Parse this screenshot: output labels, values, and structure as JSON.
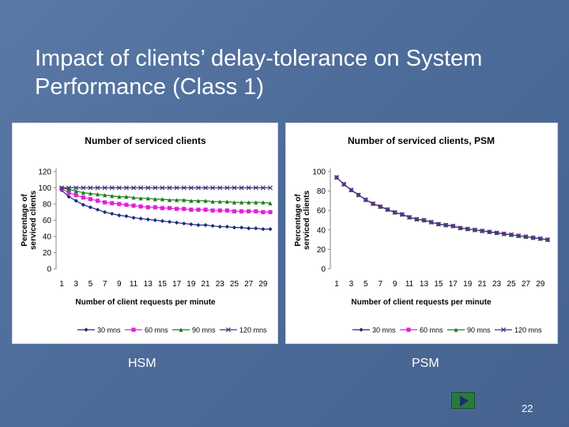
{
  "slide": {
    "title": "Impact of clients’ delay-tolerance on System Performance (Class 1)",
    "page_number": "22",
    "captions": [
      "HSM",
      "PSM"
    ]
  },
  "chart_data": [
    {
      "type": "line",
      "title": "Number of serviced clients",
      "xlabel": "Number of client requests per minute",
      "ylabel": "Percentage of serviced clients",
      "x": [
        1,
        2,
        3,
        4,
        5,
        6,
        7,
        8,
        9,
        10,
        11,
        12,
        13,
        14,
        15,
        16,
        17,
        18,
        19,
        20,
        21,
        22,
        23,
        24,
        25,
        26,
        27,
        28,
        29,
        30
      ],
      "xticks": [
        "1",
        "3",
        "5",
        "7",
        "9",
        "11",
        "13",
        "15",
        "17",
        "19",
        "21",
        "23",
        "25",
        "27",
        "29"
      ],
      "yticks": [
        "0",
        "20",
        "40",
        "60",
        "80",
        "100",
        "120"
      ],
      "ylim": [
        0,
        120
      ],
      "grid": false,
      "legend_position": "bottom",
      "series": [
        {
          "name": "30 mns",
          "color": "#1f2a7a",
          "marker": "diamond",
          "values": [
            97,
            89,
            84,
            79,
            76,
            73,
            70,
            68,
            66,
            65,
            63,
            62,
            61,
            60,
            59,
            58,
            57,
            56,
            55,
            54,
            54,
            53,
            52,
            52,
            51,
            51,
            50,
            50,
            49,
            49
          ]
        },
        {
          "name": "60 mns",
          "color": "#e020d8",
          "marker": "square",
          "values": [
            99,
            94,
            91,
            88,
            86,
            84,
            82,
            81,
            80,
            79,
            78,
            77,
            76,
            76,
            75,
            75,
            74,
            74,
            73,
            73,
            73,
            72,
            72,
            72,
            71,
            71,
            71,
            71,
            70,
            70
          ]
        },
        {
          "name": "90 mns",
          "color": "#1e7a1e",
          "marker": "triangle",
          "values": [
            100,
            98,
            96,
            94,
            93,
            92,
            91,
            90,
            89,
            89,
            88,
            87,
            87,
            86,
            86,
            85,
            85,
            85,
            84,
            84,
            84,
            83,
            83,
            83,
            82,
            82,
            82,
            82,
            82,
            81
          ]
        },
        {
          "name": "120 mns",
          "color": "#3a3a7a",
          "marker": "x",
          "values": [
            100,
            100,
            100,
            100,
            100,
            100,
            100,
            100,
            100,
            100,
            100,
            100,
            100,
            100,
            100,
            100,
            100,
            100,
            100,
            100,
            100,
            100,
            100,
            100,
            100,
            100,
            100,
            100,
            100,
            100
          ]
        }
      ]
    },
    {
      "type": "line",
      "title": "Number of serviced clients, PSM",
      "xlabel": "Number of client requests per minute",
      "ylabel": "Percentage of serviced clients",
      "x": [
        1,
        2,
        3,
        4,
        5,
        6,
        7,
        8,
        9,
        10,
        11,
        12,
        13,
        14,
        15,
        16,
        17,
        18,
        19,
        20,
        21,
        22,
        23,
        24,
        25,
        26,
        27,
        28,
        29,
        30
      ],
      "xticks": [
        "1",
        "3",
        "5",
        "7",
        "9",
        "11",
        "13",
        "15",
        "17",
        "19",
        "21",
        "23",
        "25",
        "27",
        "29"
      ],
      "yticks": [
        "0",
        "20",
        "40",
        "60",
        "80",
        "100"
      ],
      "ylim": [
        0,
        100
      ],
      "grid": false,
      "legend_position": "bottom",
      "series": [
        {
          "name": "30 mns",
          "color": "#1f2a7a",
          "marker": "diamond",
          "values": [
            94,
            87,
            81,
            76,
            71,
            67,
            64,
            61,
            58,
            56,
            53,
            51,
            50,
            48,
            46,
            45,
            44,
            42,
            41,
            40,
            39,
            38,
            37,
            36,
            35,
            34,
            33,
            32,
            31,
            30
          ]
        },
        {
          "name": "60 mns",
          "color": "#e020d8",
          "marker": "square",
          "values": [
            94,
            87,
            81,
            76,
            71,
            67,
            64,
            61,
            58,
            56,
            53,
            51,
            50,
            48,
            46,
            45,
            44,
            42,
            41,
            40,
            39,
            38,
            37,
            36,
            35,
            34,
            33,
            32,
            31,
            30
          ]
        },
        {
          "name": "90 mns",
          "color": "#1e7a1e",
          "marker": "triangle",
          "values": [
            94,
            87,
            81,
            76,
            71,
            67,
            64,
            61,
            58,
            56,
            53,
            51,
            50,
            48,
            46,
            45,
            44,
            42,
            41,
            40,
            39,
            38,
            37,
            36,
            35,
            34,
            33,
            32,
            31,
            30
          ]
        },
        {
          "name": "120 mns",
          "color": "#3a3a7a",
          "marker": "x",
          "values": [
            94,
            87,
            81,
            76,
            71,
            67,
            64,
            61,
            58,
            56,
            53,
            51,
            50,
            48,
            46,
            45,
            44,
            42,
            41,
            40,
            39,
            38,
            37,
            36,
            35,
            34,
            33,
            32,
            31,
            30
          ]
        }
      ]
    }
  ]
}
